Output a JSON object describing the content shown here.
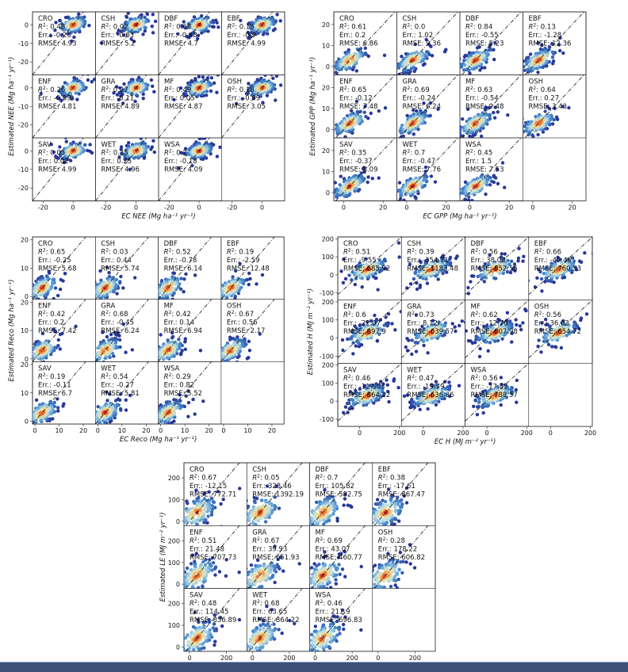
{
  "chart_data": [
    {
      "type": "scatter",
      "ylabel": "Estimated NEE",
      "ylabel_units": "(Mg ha⁻¹ yr⁻¹)",
      "xlabel": "EC NEE",
      "xlabel_units": "(Mg ha⁻¹ yr⁻¹)",
      "xlim": [
        -27,
        15
      ],
      "ylim": [
        -27,
        7
      ],
      "xticks": [
        -20,
        0
      ],
      "yticks": [
        -20,
        -10,
        0
      ],
      "panels": [
        {
          "name": "CRO",
          "r2": "0.48",
          "err": "-0.23",
          "rmse": "4.93"
        },
        {
          "name": "CSH",
          "r2": "0.02",
          "err": "-0.63",
          "rmse": "5.2"
        },
        {
          "name": "DBF",
          "r2": "0.68",
          "err": "-0.48",
          "rmse": "4.7"
        },
        {
          "name": "EBF",
          "r2": "0.15",
          "err": "-0.9",
          "rmse": "4.99"
        },
        {
          "name": "ENF",
          "r2": "0.26",
          "err": "-0.09",
          "rmse": "4.81"
        },
        {
          "name": "GRA",
          "r2": "0.27",
          "err": "-0.11",
          "rmse": "4.89"
        },
        {
          "name": "MF",
          "r2": "0.49",
          "err": "0.05",
          "rmse": "4.87"
        },
        {
          "name": "OSH",
          "r2": "0.18",
          "err": "-0.09",
          "rmse": "3.05"
        },
        {
          "name": "SAV",
          "r2": "0.05",
          "err": "0.02",
          "rmse": "4.99"
        },
        {
          "name": "WET",
          "r2": "0.35",
          "err": "0.25",
          "rmse": "4.96"
        },
        {
          "name": "WSA",
          "r2": "0.2",
          "err": "-0.18",
          "rmse": "4.09"
        }
      ]
    },
    {
      "type": "scatter",
      "ylabel": "Estimated GPP",
      "ylabel_units": "(Mg ha⁻¹ yr⁻¹)",
      "xlabel": "EC GPP",
      "xlabel_units": "(Mg ha⁻¹ yr⁻¹)",
      "xlim": [
        -5,
        27
      ],
      "ylim": [
        -4,
        26
      ],
      "xticks": [
        0,
        20
      ],
      "yticks": [
        0,
        10,
        20
      ],
      "panels": [
        {
          "name": "CRO",
          "r2": "0.61",
          "err": "0.2",
          "rmse": "6.86"
        },
        {
          "name": "CSH",
          "r2": "0.0",
          "err": "1.02",
          "rmse": "9.36"
        },
        {
          "name": "DBF",
          "r2": "0.84",
          "err": "-0.55",
          "rmse": "5.23"
        },
        {
          "name": "EBF",
          "r2": "0.13",
          "err": "-1.28",
          "rmse": "12.36"
        },
        {
          "name": "ENF",
          "r2": "0.65",
          "err": "-0.12",
          "rmse": "7.48"
        },
        {
          "name": "GRA",
          "r2": "0.69",
          "err": "-0.24",
          "rmse": "6.24"
        },
        {
          "name": "MF",
          "r2": "0.63",
          "err": "-0.54",
          "rmse": "9.48"
        },
        {
          "name": "OSH",
          "r2": "0.64",
          "err": "0.27",
          "rmse": "3.43"
        },
        {
          "name": "SAV",
          "r2": "0.35",
          "err": "-0.37",
          "rmse": "8.09"
        },
        {
          "name": "WET",
          "r2": "0.7",
          "err": "-0.47",
          "rmse": "7.76"
        },
        {
          "name": "WSA",
          "r2": "0.45",
          "err": "1.5",
          "rmse": "7.53"
        }
      ]
    },
    {
      "type": "scatter",
      "ylabel": "Estimated Reco",
      "ylabel_units": "(Mg ha⁻¹ yr⁻¹)",
      "xlabel": "EC Reco",
      "xlabel_units": "(Mg ha⁻¹ yr⁻¹)",
      "xlim": [
        -1,
        25
      ],
      "ylim": [
        -1,
        21
      ],
      "xticks": [
        0,
        10,
        20
      ],
      "yticks": [
        0,
        10,
        20
      ],
      "panels": [
        {
          "name": "CRO",
          "r2": "0.65",
          "err": "-0.25",
          "rmse": "5.68"
        },
        {
          "name": "CSH",
          "r2": "0.03",
          "err": "0.44",
          "rmse": "5.74"
        },
        {
          "name": "DBF",
          "r2": "0.52",
          "err": "-0.78",
          "rmse": "6.14"
        },
        {
          "name": "EBF",
          "r2": "0.19",
          "err": "-2.59",
          "rmse": "12.48"
        },
        {
          "name": "ENF",
          "r2": "0.42",
          "err": "0.2",
          "rmse": "7.42"
        },
        {
          "name": "GRA",
          "r2": "0.68",
          "err": "-0.45",
          "rmse": "6.24"
        },
        {
          "name": "MF",
          "r2": "0.42",
          "err": "0.14",
          "rmse": "6.94"
        },
        {
          "name": "OSH",
          "r2": "0.67",
          "err": "0.56",
          "rmse": "2.17"
        },
        {
          "name": "SAV",
          "r2": "0.19",
          "err": "-0.11",
          "rmse": "6.7"
        },
        {
          "name": "WET",
          "r2": "0.54",
          "err": "-0.27",
          "rmse": "5.81"
        },
        {
          "name": "WSA",
          "r2": "0.29",
          "err": "0.82",
          "rmse": "5.52"
        }
      ]
    },
    {
      "type": "scatter",
      "ylabel": "Estimated H",
      "ylabel_units": "(MJ m⁻² yr⁻¹)",
      "xlabel": "EC H",
      "xlabel_units": "(MJ m⁻² yr⁻¹)",
      "xlim": [
        -110,
        210
      ],
      "ylim": [
        -140,
        210
      ],
      "xticks": [
        0,
        200
      ],
      "yticks": [
        -100,
        0,
        100,
        200
      ],
      "panels": [
        {
          "name": "CRO",
          "r2": "0.51",
          "err": "-9.55",
          "rmse": "685.92"
        },
        {
          "name": "CSH",
          "r2": "0.39",
          "err": "-354.71",
          "rmse": "1183.48"
        },
        {
          "name": "DBF",
          "r2": "0.56",
          "err": "38.03",
          "rmse": "852.55"
        },
        {
          "name": "EBF",
          "r2": "0.66",
          "err": "-49.46",
          "rmse": "760.53"
        },
        {
          "name": "ENF",
          "r2": "0.6",
          "err": "-22.07",
          "rmse": "897.9"
        },
        {
          "name": "GRA",
          "r2": "0.73",
          "err": "8.12",
          "rmse": "639.57"
        },
        {
          "name": "MF",
          "r2": "0.62",
          "err": "-12.78",
          "rmse": "807.98"
        },
        {
          "name": "OSH",
          "r2": "0.56",
          "err": "36.03",
          "rmse": "654.72"
        },
        {
          "name": "SAV",
          "r2": "0.46",
          "err": "-117.03",
          "rmse": "864.22"
        },
        {
          "name": "WET",
          "r2": "0.47",
          "err": "-19.79",
          "rmse": "636.36"
        },
        {
          "name": "WSA",
          "r2": "0.56",
          "err": "-17.82",
          "rmse": "788.57"
        }
      ]
    },
    {
      "type": "scatter",
      "ylabel": "Estimated LE",
      "ylabel_units": "(MJ m⁻² yr⁻¹)",
      "xlabel": "EC LE",
      "xlabel_units": "(MJ m⁻² yr⁻¹)",
      "xlim": [
        -30,
        310
      ],
      "ylim": [
        -20,
        270
      ],
      "xticks": [
        0,
        200
      ],
      "yticks": [
        0,
        100,
        200
      ],
      "panels": [
        {
          "name": "CRO",
          "r2": "0.67",
          "err": "-12.15",
          "rmse": "772.71"
        },
        {
          "name": "CSH",
          "r2": "0.05",
          "err": "328.46",
          "rmse": "1392.19"
        },
        {
          "name": "DBF",
          "r2": "0.7",
          "err": "105.82",
          "rmse": "582.75"
        },
        {
          "name": "EBF",
          "r2": "0.38",
          "err": "-17.61",
          "rmse": "867.47"
        },
        {
          "name": "ENF",
          "r2": "0.51",
          "err": "21.48",
          "rmse": "707.73"
        },
        {
          "name": "GRA",
          "r2": "0.67",
          "err": "39.93",
          "rmse": "651.93"
        },
        {
          "name": "MF",
          "r2": "0.69",
          "err": "43.07",
          "rmse": "460.77"
        },
        {
          "name": "OSH",
          "r2": "0.28",
          "err": "178.22",
          "rmse": "606.82"
        },
        {
          "name": "SAV",
          "r2": "0.48",
          "err": "114.45",
          "rmse": "856.89"
        },
        {
          "name": "WET",
          "r2": "0.68",
          "err": "63.65",
          "rmse": "864.22"
        },
        {
          "name": "WSA",
          "r2": "0.46",
          "err": "211.9",
          "rmse": "696.83"
        }
      ]
    }
  ],
  "labels": {
    "r2_prefix": "R",
    "r2_suffix": ": ",
    "err_prefix": "Err.: ",
    "rmse_prefix": "RMSE: "
  },
  "colors": {
    "low": "#2b3a9a",
    "mid": "#55a8d8",
    "high_mid": "#f2d79a",
    "high": "#c8201e",
    "frame": "#222222",
    "background": "#ffffff",
    "bottom_bar": "#3c5078"
  }
}
